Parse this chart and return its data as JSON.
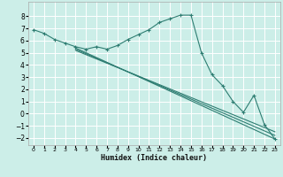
{
  "title": "",
  "xlabel": "Humidex (Indice chaleur)",
  "bg_color": "#cceee8",
  "grid_color": "#ffffff",
  "line_color": "#2e7d72",
  "xlim": [
    -0.5,
    23.5
  ],
  "ylim": [
    -2.6,
    9.2
  ],
  "yticks": [
    -2,
    -1,
    0,
    1,
    2,
    3,
    4,
    5,
    6,
    7,
    8
  ],
  "xtick_labels": [
    "0",
    "1",
    "2",
    "3",
    "4",
    "5",
    "6",
    "7",
    "8",
    "9",
    "10",
    "11",
    "12",
    "13",
    "14",
    "15",
    "16",
    "17",
    "18",
    "19",
    "20",
    "21",
    "22",
    "23"
  ],
  "series1_x": [
    0,
    1,
    2,
    3,
    4,
    5,
    6,
    7,
    8,
    9,
    10,
    11,
    12,
    13,
    14,
    15,
    16,
    17,
    18,
    19,
    20,
    21,
    22,
    23
  ],
  "series1_y": [
    6.9,
    6.6,
    6.1,
    5.8,
    5.5,
    5.3,
    5.5,
    5.3,
    5.6,
    6.1,
    6.5,
    6.9,
    7.5,
    7.8,
    8.1,
    8.1,
    5.0,
    3.2,
    2.3,
    1.0,
    0.1,
    1.5,
    -0.9,
    -2.1
  ],
  "diag_lines": [
    {
      "x": [
        4,
        23
      ],
      "y": [
        5.4,
        -2.1
      ]
    },
    {
      "x": [
        4,
        23
      ],
      "y": [
        5.3,
        -1.8
      ]
    },
    {
      "x": [
        4,
        23
      ],
      "y": [
        5.2,
        -1.5
      ]
    }
  ],
  "flat_line_x": [
    0,
    10
  ],
  "flat_line_y": [
    6.7,
    6.5
  ]
}
